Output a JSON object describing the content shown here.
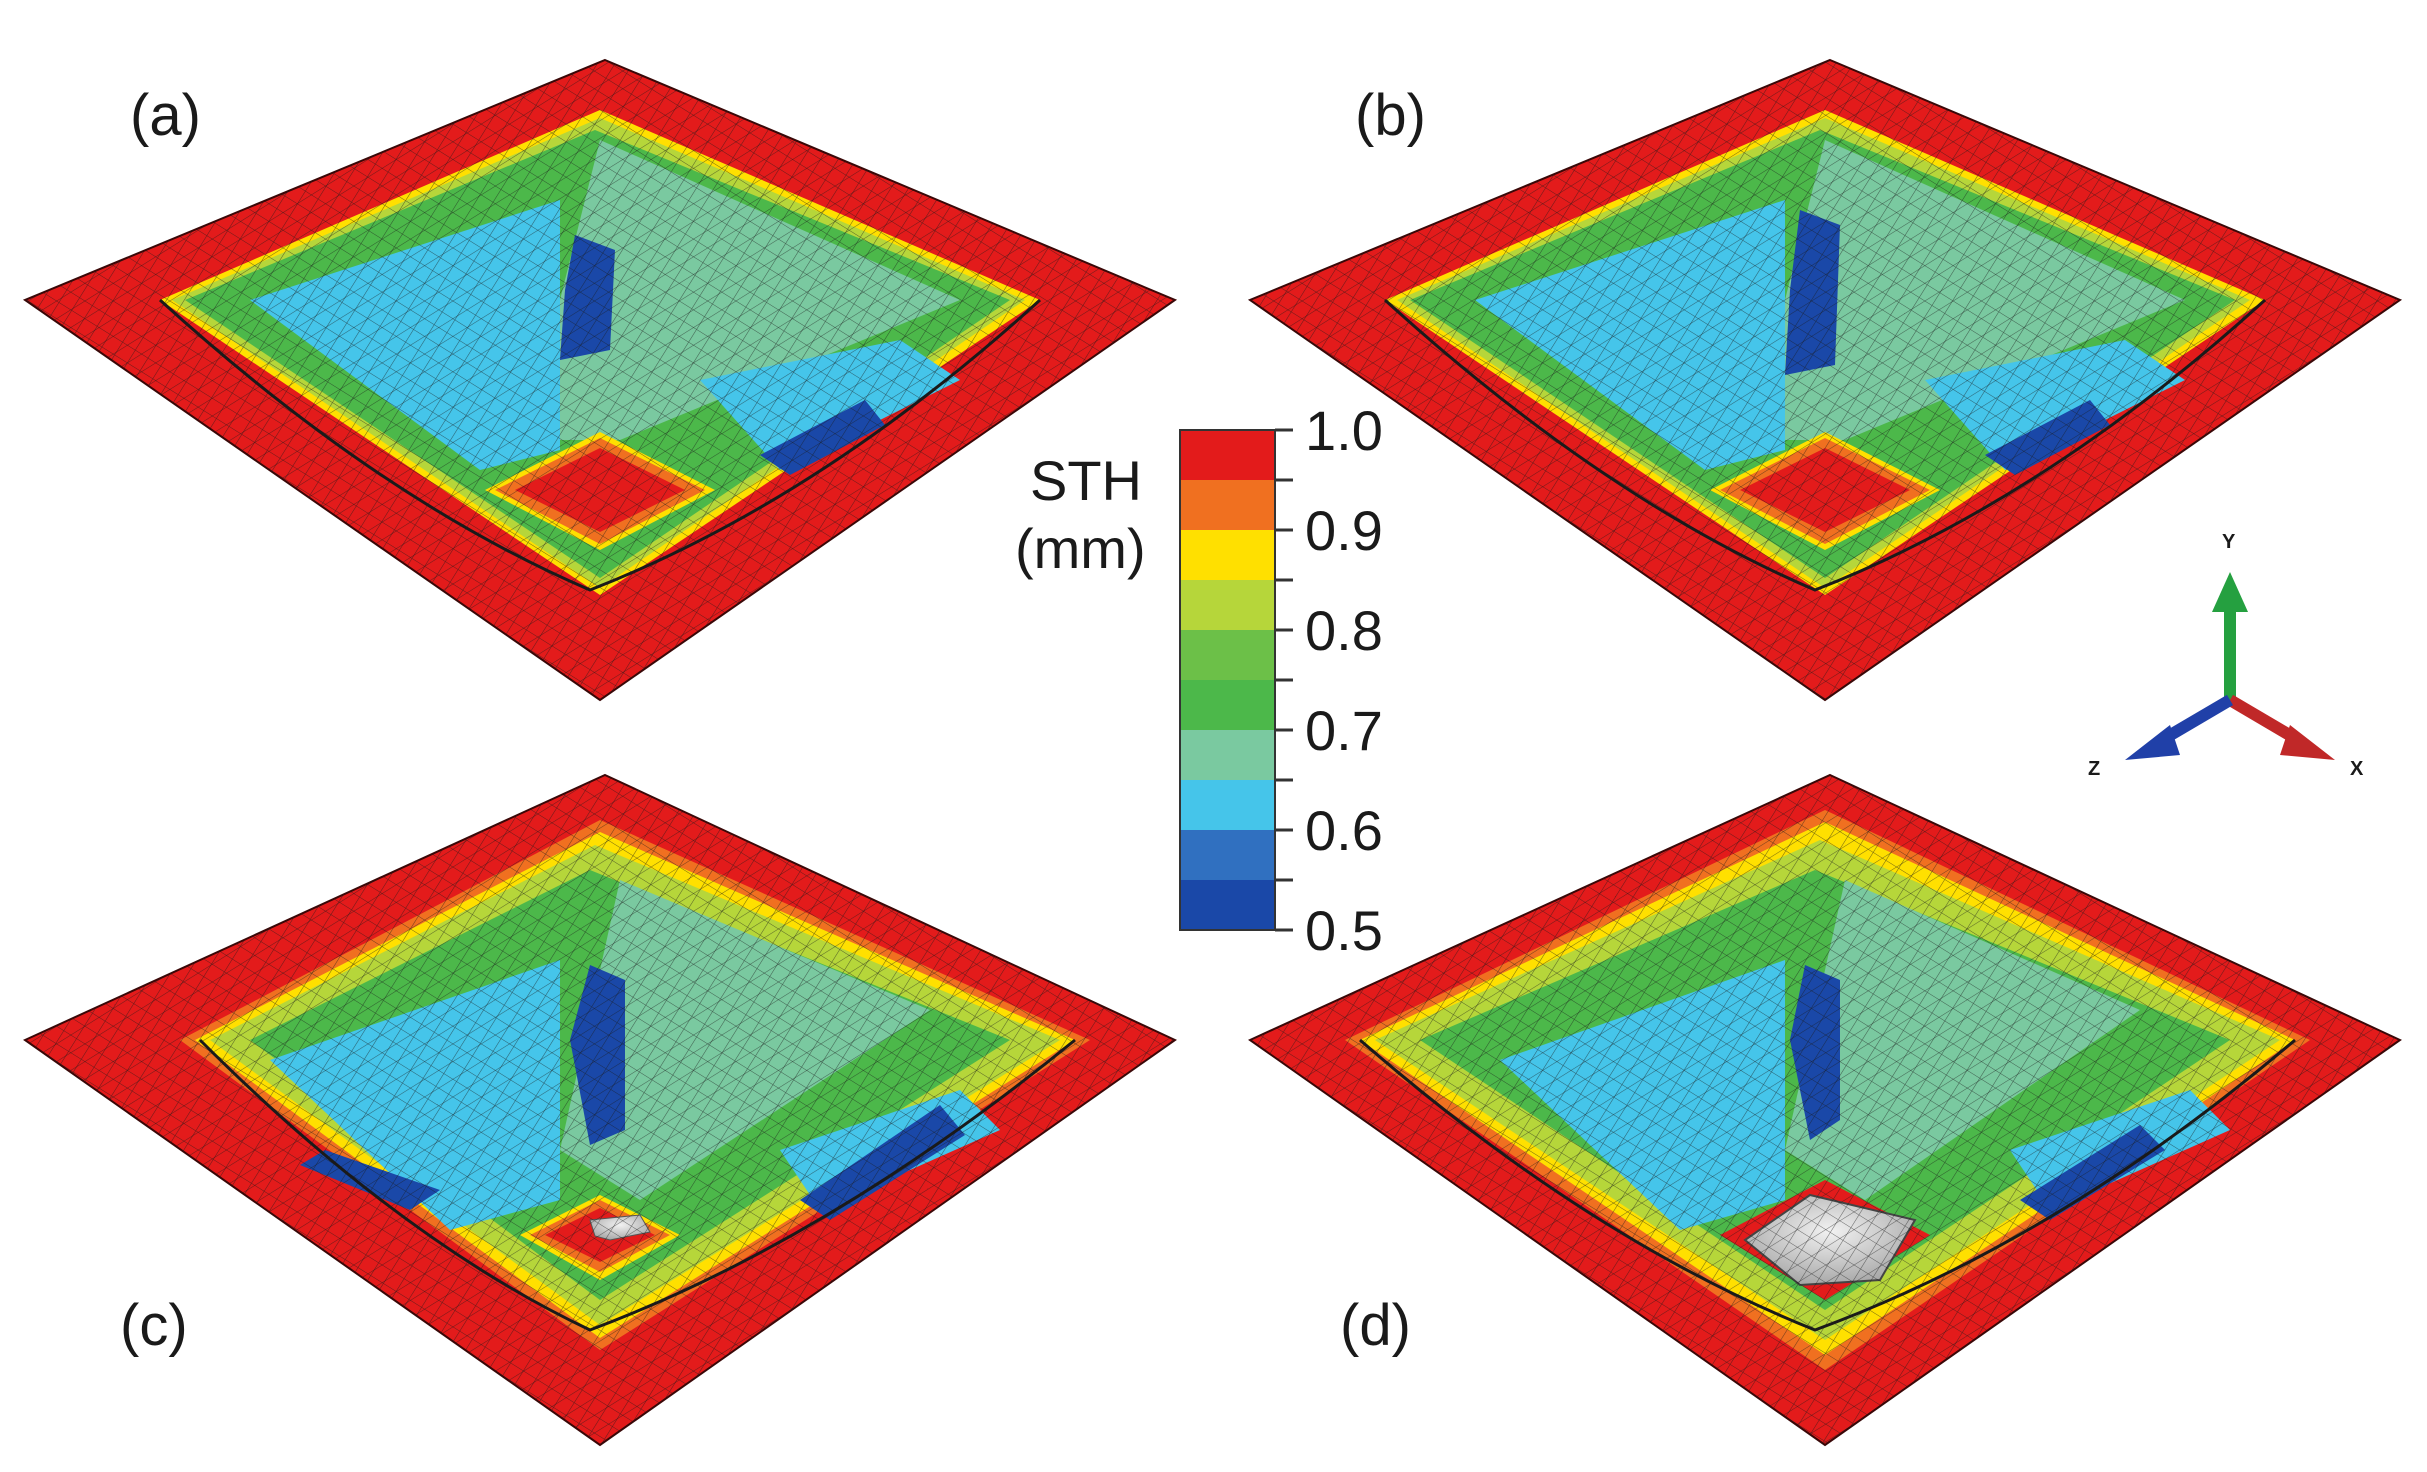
{
  "panels": [
    {
      "label": "(a)"
    },
    {
      "label": "(b)"
    },
    {
      "label": "(c)"
    },
    {
      "label": "(d)"
    }
  ],
  "legend": {
    "title_line1": "STH",
    "title_line2": "(mm)",
    "ticks": [
      "1.0",
      "0.9",
      "0.8",
      "0.7",
      "0.6",
      "0.5"
    ],
    "range": [
      0.5,
      1.0
    ],
    "colors": [
      "#e31b1b",
      "#f07020",
      "#ffe000",
      "#b6d63a",
      "#6cc048",
      "#4cb84a",
      "#7ac9a0",
      "#45c5ea",
      "#3070c0",
      "#1a48a8"
    ]
  },
  "axes": {
    "y": "Y",
    "x": "X",
    "z": "Z",
    "colors": {
      "y": "#25a040",
      "x": "#c02828",
      "z": "#2040a8"
    }
  }
}
